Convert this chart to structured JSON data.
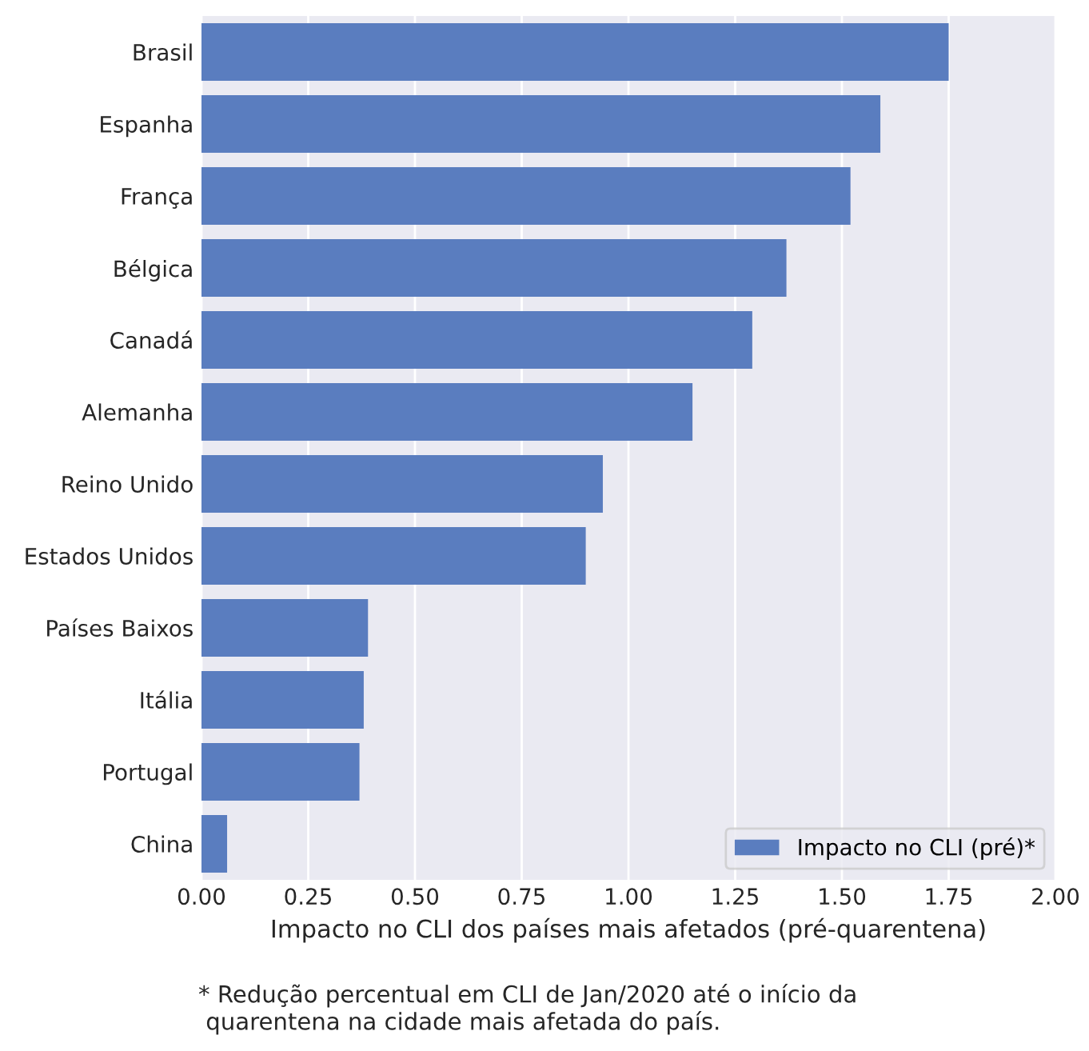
{
  "chart_data": {
    "type": "bar",
    "orientation": "horizontal",
    "xlabel": "Impacto no CLI dos países mais afetados (pré-quarentena)",
    "categories": [
      "Brasil",
      "Espanha",
      "França",
      "Bélgica",
      "Canadá",
      "Alemanha",
      "Reino Unido",
      "Estados Unidos",
      "Países Baixos",
      "Itália",
      "Portugal",
      "China"
    ],
    "series": [
      {
        "name": "Impacto no CLI (pré)*",
        "color": "#5a7dbf",
        "values": [
          1.75,
          1.59,
          1.52,
          1.37,
          1.29,
          1.15,
          0.94,
          0.9,
          0.39,
          0.38,
          0.37,
          0.06
        ]
      }
    ],
    "xlim": [
      0,
      2
    ],
    "xticks": [
      {
        "value": 0,
        "label": "0.00"
      },
      {
        "value": 0.25,
        "label": "0.25"
      },
      {
        "value": 0.5,
        "label": "0.50"
      },
      {
        "value": 0.75,
        "label": "0.75"
      },
      {
        "value": 1,
        "label": "1.00"
      },
      {
        "value": 1.25,
        "label": "1.25"
      },
      {
        "value": 1.5,
        "label": "1.50"
      },
      {
        "value": 1.75,
        "label": "1.75"
      },
      {
        "value": 2,
        "label": "2.00"
      }
    ],
    "grid": "x",
    "legend": "bottom right",
    "annotations": [
      "* Redução percentual em CLI de Jan/2020 até o início da\n quarentena na cidade mais afetada do país."
    ]
  }
}
